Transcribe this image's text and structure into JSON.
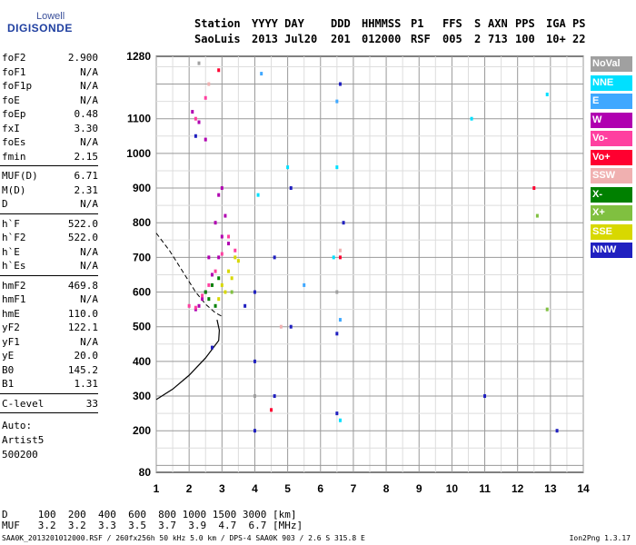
{
  "header": {
    "logo_top": "Lowell",
    "logo_bottom": "DIGISONDE",
    "cols": [
      {
        "title": "Station",
        "value": "SaoLuis"
      },
      {
        "title": "YYYY DAY",
        "value": "2013 Jul20"
      },
      {
        "title": "DDD",
        "value": "201"
      },
      {
        "title": "HHMMSS",
        "value": "012000"
      },
      {
        "title": "P1",
        "value": "RSF"
      },
      {
        "title": "FFS",
        "value": "005"
      },
      {
        "title": "S",
        "value": "2"
      },
      {
        "title": "AXN",
        "value": "713"
      },
      {
        "title": "PPS",
        "value": "100"
      },
      {
        "title": "IGA",
        "value": "10+"
      },
      {
        "title": "PS",
        "value": "22"
      }
    ]
  },
  "params": {
    "group1": [
      {
        "k": "foF2",
        "v": "2.900"
      },
      {
        "k": "foF1",
        "v": "N/A"
      },
      {
        "k": "foF1p",
        "v": "N/A"
      },
      {
        "k": "foE",
        "v": "N/A"
      },
      {
        "k": "foEp",
        "v": "0.48"
      },
      {
        "k": "fxI",
        "v": "3.30"
      },
      {
        "k": "foEs",
        "v": "N/A"
      },
      {
        "k": "fmin",
        "v": "2.15"
      }
    ],
    "group2": [
      {
        "k": "MUF(D)",
        "v": "6.71"
      },
      {
        "k": "M(D)",
        "v": "2.31"
      },
      {
        "k": "D",
        "v": "N/A"
      }
    ],
    "group3": [
      {
        "k": "h`F",
        "v": "522.0"
      },
      {
        "k": "h`F2",
        "v": "522.0"
      },
      {
        "k": "h`E",
        "v": "N/A"
      },
      {
        "k": "h`Es",
        "v": "N/A"
      }
    ],
    "group4": [
      {
        "k": "hmF2",
        "v": "469.8"
      },
      {
        "k": "hmF1",
        "v": "N/A"
      },
      {
        "k": "hmE",
        "v": "110.0"
      },
      {
        "k": "yF2",
        "v": "122.1"
      },
      {
        "k": "yF1",
        "v": "N/A"
      },
      {
        "k": "yE",
        "v": "20.0"
      },
      {
        "k": "B0",
        "v": "145.2"
      },
      {
        "k": "B1",
        "v": "1.31"
      }
    ],
    "group5": [
      {
        "k": "C-level",
        "v": "33"
      }
    ],
    "auto_lines": [
      "Auto:",
      "Artist5",
      "500200"
    ]
  },
  "legend": [
    {
      "label": "NoVal",
      "color": "#a0a0a0"
    },
    {
      "label": "NNE",
      "color": "#00e0ff"
    },
    {
      "label": "E",
      "color": "#40a8ff"
    },
    {
      "label": "W",
      "color": "#b000b0"
    },
    {
      "label": "Vo-",
      "color": "#ff40a0"
    },
    {
      "label": "Vo+",
      "color": "#ff0030"
    },
    {
      "label": "SSW",
      "color": "#f0b0b0"
    },
    {
      "label": "X-",
      "color": "#008000"
    },
    {
      "label": "X+",
      "color": "#80c040"
    },
    {
      "label": "SSE",
      "color": "#d8d800"
    },
    {
      "label": "NNW",
      "color": "#2020c0"
    }
  ],
  "footer": {
    "d_line": "D     100  200  400  600  800 1000 1500 3000 [km]",
    "muf_line": "MUF   3.2  3.2  3.3  3.5  3.7  3.9  4.7  6.7 [MHz]",
    "file_line": "SAA0K_2013201012000.RSF / 260fx256h 50 kHz 5.0 km / DPS-4 SAA0K 903 / 2.6 S 315.8 E",
    "version": "Ion2Png 1.3.17"
  },
  "chart_data": {
    "type": "scatter",
    "title": "",
    "xlabel": "",
    "ylabel": "",
    "xlim": [
      1,
      14
    ],
    "ylim": [
      80,
      1280
    ],
    "x_ticks": [
      "1",
      "2",
      "3",
      "4",
      "5",
      "6",
      "7",
      "8",
      "9",
      "10",
      "11",
      "12",
      "13",
      "14"
    ],
    "y_ticks": [
      "80",
      "200",
      "300",
      "400",
      "500",
      "600",
      "700",
      "800",
      "900",
      "1000",
      "1100",
      "1280"
    ],
    "series": [
      {
        "name": "W",
        "points": [
          [
            2.3,
            560
          ],
          [
            2.5,
            600
          ],
          [
            2.7,
            650
          ],
          [
            2.9,
            700
          ],
          [
            3.0,
            760
          ],
          [
            2.8,
            800
          ],
          [
            2.6,
            700
          ],
          [
            3.1,
            820
          ],
          [
            2.4,
            580
          ],
          [
            2.2,
            550
          ],
          [
            3.2,
            740
          ],
          [
            2.9,
            880
          ],
          [
            3.0,
            900
          ],
          [
            2.1,
            1120
          ],
          [
            2.3,
            1090
          ],
          [
            2.5,
            1040
          ]
        ]
      },
      {
        "name": "Vo-",
        "points": [
          [
            2.2,
            555
          ],
          [
            2.4,
            590
          ],
          [
            2.6,
            620
          ],
          [
            2.8,
            660
          ],
          [
            3.0,
            710
          ],
          [
            3.2,
            760
          ],
          [
            3.4,
            720
          ],
          [
            2.0,
            560
          ],
          [
            2.5,
            1160
          ],
          [
            2.2,
            1100
          ]
        ]
      },
      {
        "name": "SSE",
        "points": [
          [
            3.0,
            620
          ],
          [
            3.2,
            660
          ],
          [
            3.4,
            700
          ],
          [
            3.5,
            690
          ],
          [
            3.3,
            640
          ],
          [
            3.1,
            600
          ],
          [
            2.9,
            580
          ]
        ]
      },
      {
        "name": "X-",
        "points": [
          [
            2.5,
            600
          ],
          [
            2.7,
            620
          ],
          [
            2.9,
            640
          ],
          [
            2.6,
            580
          ],
          [
            2.8,
            560
          ]
        ]
      },
      {
        "name": "NNW",
        "points": [
          [
            4.0,
            200
          ],
          [
            4.0,
            400
          ],
          [
            4.0,
            600
          ],
          [
            4.6,
            700
          ],
          [
            4.6,
            300
          ],
          [
            5.1,
            500
          ],
          [
            5.1,
            900
          ],
          [
            6.5,
            250
          ],
          [
            6.5,
            480
          ],
          [
            6.7,
            800
          ],
          [
            6.6,
            1200
          ],
          [
            2.2,
            1050
          ],
          [
            2.7,
            440
          ],
          [
            3.7,
            560
          ],
          [
            13.2,
            200
          ],
          [
            11.0,
            300
          ]
        ]
      },
      {
        "name": "NNE",
        "points": [
          [
            6.4,
            700
          ],
          [
            6.6,
            230
          ],
          [
            6.5,
            960
          ],
          [
            4.1,
            880
          ],
          [
            5.0,
            960
          ],
          [
            10.6,
            1100
          ],
          [
            12.9,
            1170
          ]
        ]
      },
      {
        "name": "E",
        "points": [
          [
            6.5,
            1150
          ],
          [
            6.6,
            520
          ],
          [
            4.2,
            1230
          ],
          [
            5.5,
            620
          ]
        ]
      },
      {
        "name": "Vo+",
        "points": [
          [
            6.6,
            700
          ],
          [
            4.5,
            260
          ],
          [
            2.9,
            1240
          ],
          [
            12.5,
            900
          ]
        ]
      },
      {
        "name": "SSW",
        "points": [
          [
            6.6,
            720
          ],
          [
            2.6,
            1200
          ],
          [
            4.8,
            500
          ]
        ]
      },
      {
        "name": "X+",
        "points": [
          [
            12.6,
            820
          ],
          [
            12.9,
            550
          ],
          [
            3.3,
            600
          ]
        ]
      },
      {
        "name": "NoVal",
        "points": [
          [
            6.5,
            600
          ],
          [
            4.0,
            300
          ],
          [
            2.3,
            1260
          ]
        ]
      }
    ],
    "grid": true
  }
}
